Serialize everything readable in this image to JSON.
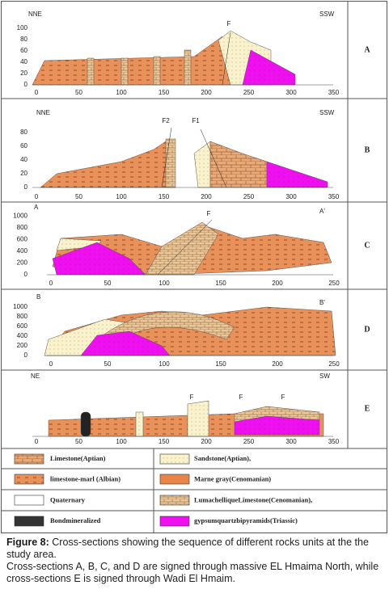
{
  "panels": [
    {
      "label": "A",
      "left": "NNE",
      "right": "SSW",
      "yticks": [
        0,
        20,
        40,
        60,
        80,
        100
      ],
      "xticks": [
        0,
        50,
        100,
        150,
        200,
        250,
        300,
        350
      ],
      "faults": [
        "F"
      ]
    },
    {
      "label": "B",
      "left": "NNE",
      "right": "SSW",
      "yticks": [
        0,
        20,
        40,
        60,
        80
      ],
      "xticks": [
        0,
        50,
        100,
        150,
        200,
        250,
        300,
        350
      ],
      "faults": [
        "F2",
        "F1"
      ]
    },
    {
      "label": "C",
      "left": "A",
      "right": "A'",
      "yticks": [
        0,
        200,
        400,
        600,
        800,
        1000
      ],
      "xticks": [
        0,
        50,
        100,
        150,
        200,
        250
      ],
      "faults": [
        "F"
      ]
    },
    {
      "label": "D",
      "left": "B",
      "right": "B'",
      "yticks": [
        0,
        200,
        400,
        600,
        800,
        1000
      ],
      "xticks": [
        0,
        50,
        100,
        150,
        200,
        250
      ],
      "faults": []
    },
    {
      "label": "E",
      "left": "NE",
      "right": "SW",
      "yticks": [],
      "xticks": [
        0,
        50,
        100,
        150,
        200,
        250,
        300,
        350
      ],
      "faults": [
        "F",
        "F",
        "F"
      ]
    }
  ],
  "legend": [
    "Limestone(Aptian)",
    "Sandstone(Aptian),",
    "limestone-marl (Albian)",
    "Marne gray(Cenomanian)",
    "Quaternary",
    "LumachelliqueLimestone(Cenomanian),",
    "Bondmineralized",
    "gypsumquartzbipyramids(Triassic)"
  ],
  "caption": {
    "lead": "Figure 8:",
    "text": " Cross-sections showing the sequence of different rocks units at the the study area.",
    "note": " Cross-sections A, B, C, and D are signed through massive EL Hmaima North, while cross-sections E is signed through Wadi El Hmaim."
  }
}
